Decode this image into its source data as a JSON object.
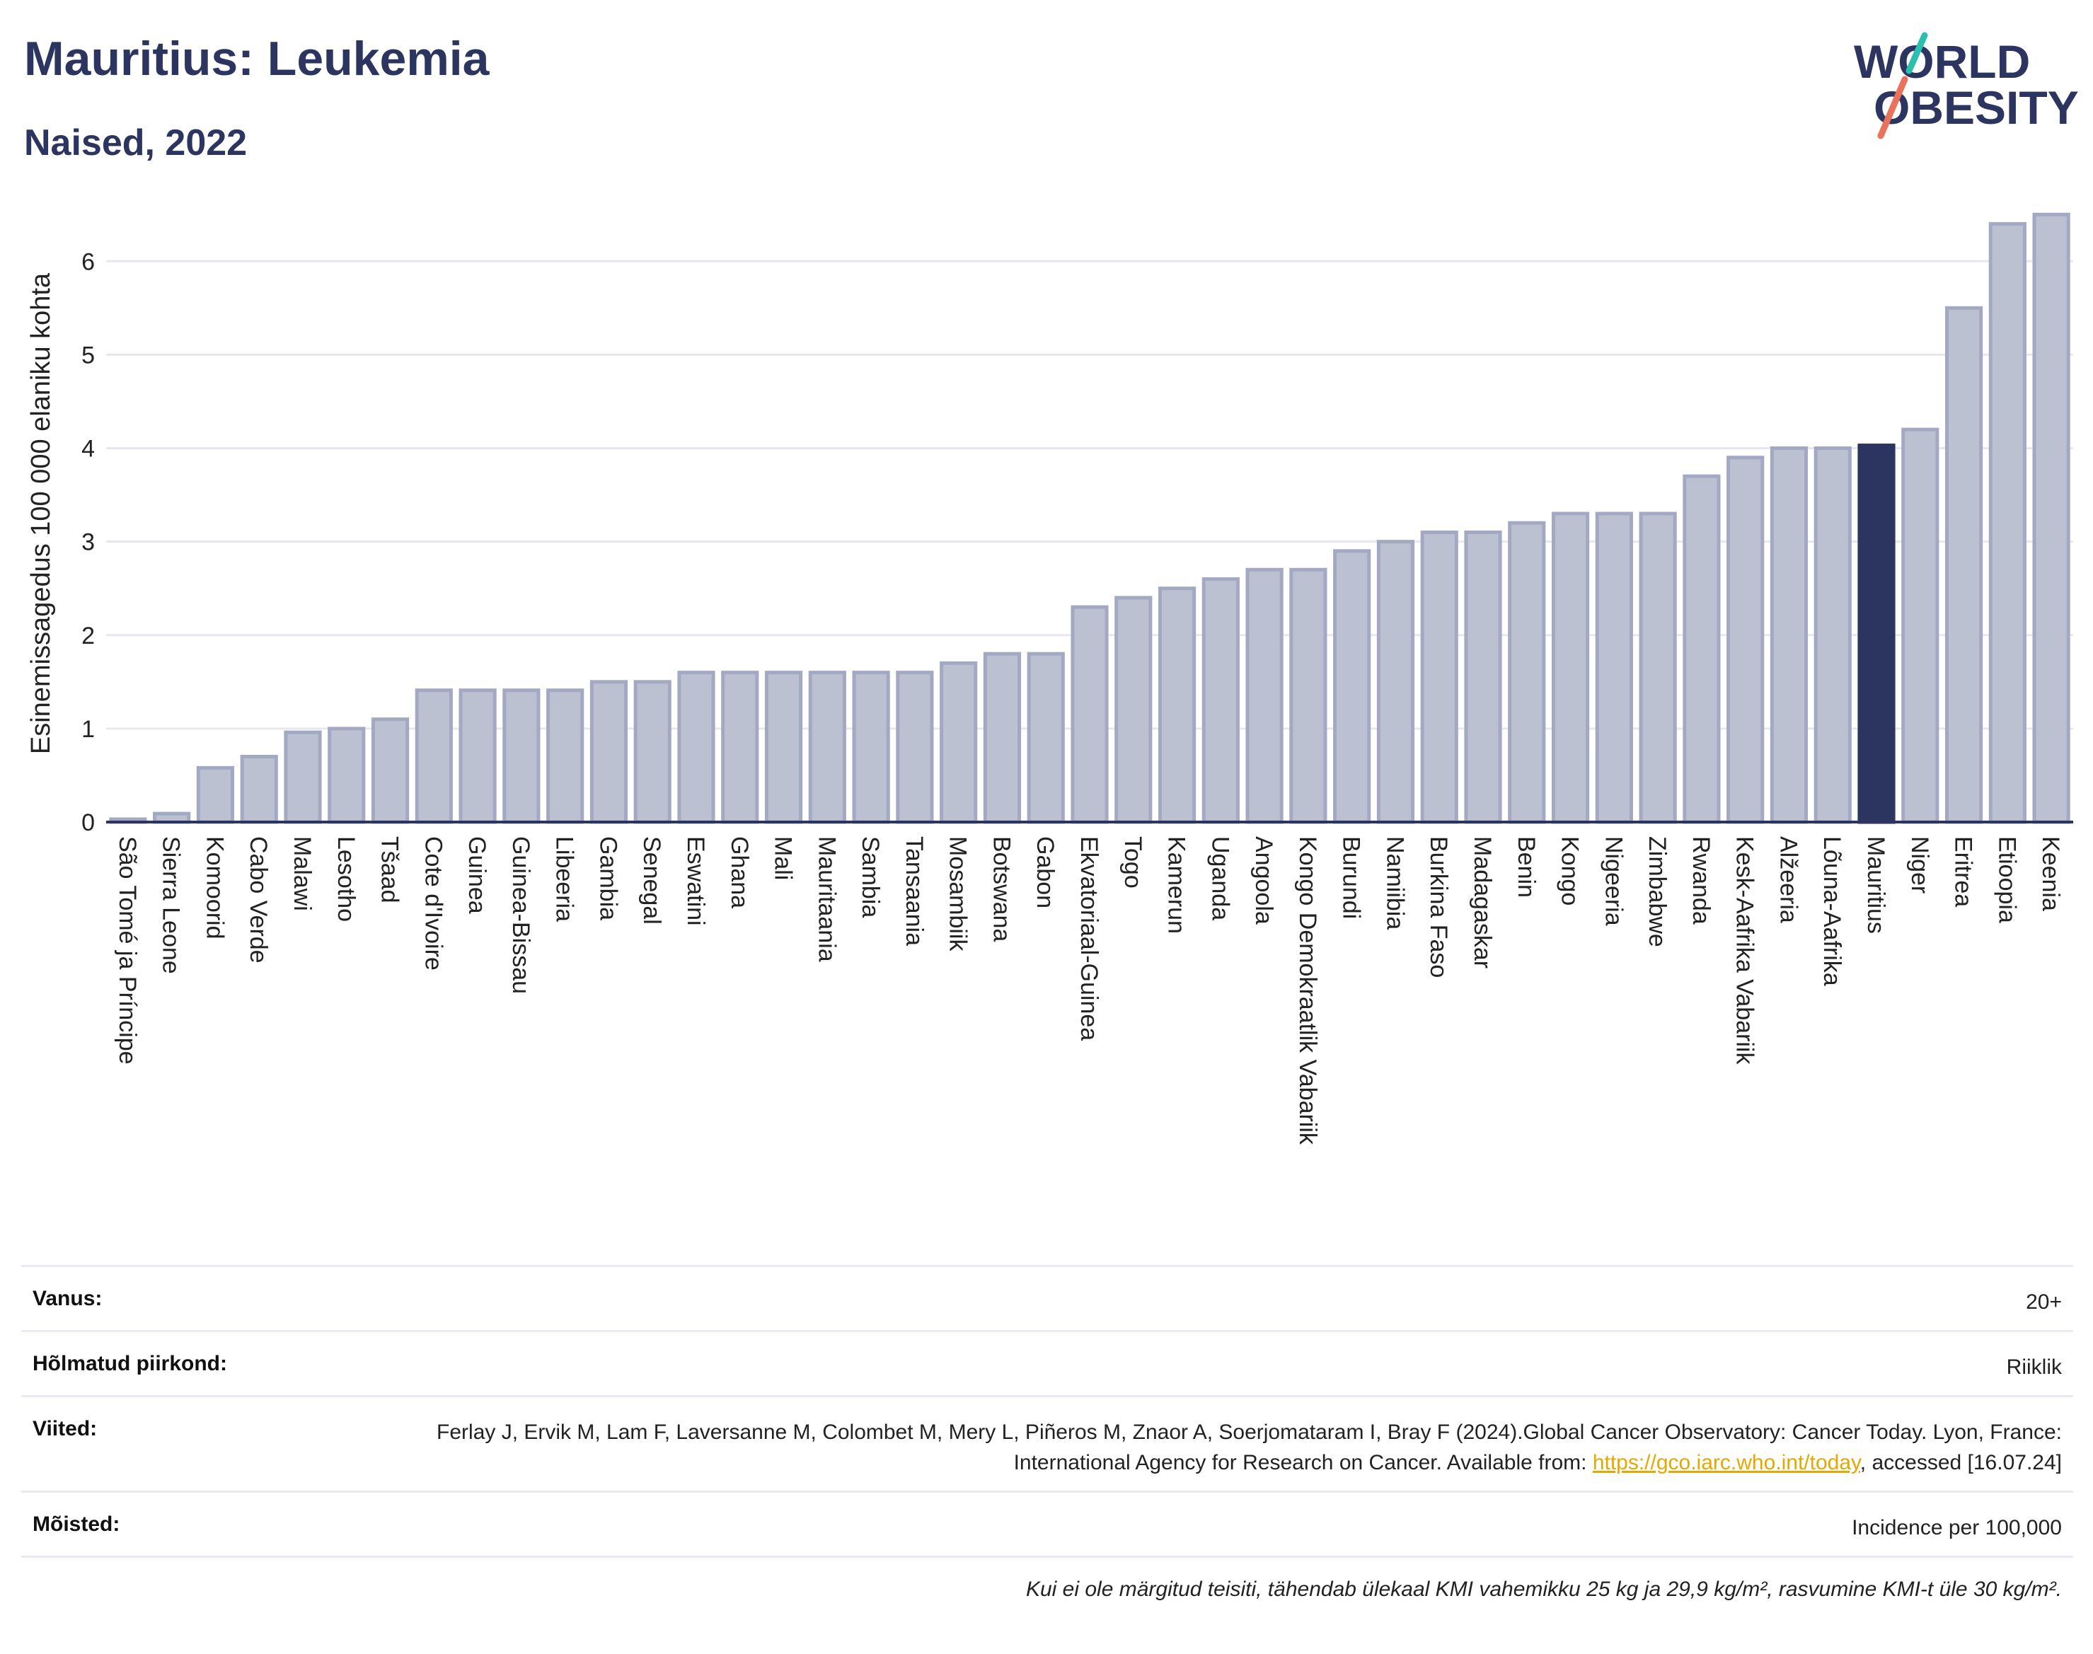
{
  "header": {
    "title": "Mauritius: Leukemia",
    "subtitle": "Naised, 2022"
  },
  "logo": {
    "line1": "WORLD",
    "line2": "OBESITY",
    "colors": {
      "text": "#2b3560",
      "slash_top": "#2bbfb0",
      "slash_bottom": "#e8735a"
    }
  },
  "chart_data": {
    "type": "bar",
    "ylabel": "Esinemissagedus 100 000 elaniku kohta",
    "ylim": [
      0,
      6.6
    ],
    "yticks": [
      0,
      1,
      2,
      3,
      4,
      5,
      6
    ],
    "grid": true,
    "highlight": "Mauritius",
    "colors": {
      "bar": "#bcc1d1",
      "bar_edge": "#a3a9c2",
      "highlight": "#2b3560",
      "grid": "#e6e8ef",
      "axis": "#2b3560"
    },
    "categories": [
      "São Tomé ja Príncipe",
      "Sierra Leone",
      "Komoorid",
      "Cabo Verde",
      "Malawi",
      "Lesotho",
      "Tšaad",
      "Cote d'Ivoire",
      "Guinea",
      "Guinea-Bissau",
      "Libeeria",
      "Gambia",
      "Senegal",
      "Eswatini",
      "Ghana",
      "Mali",
      "Mauritaania",
      "Sambia",
      "Tansaania",
      "Mosambiik",
      "Botswana",
      "Gabon",
      "Ekvatoriaal-Guinea",
      "Togo",
      "Kamerun",
      "Uganda",
      "Angoola",
      "Kongo Demokraatlik Vabariik",
      "Burundi",
      "Namiibia",
      "Burkina Faso",
      "Madagaskar",
      "Benin",
      "Kongo",
      "Nigeeria",
      "Zimbabwe",
      "Rwanda",
      "Kesk-Aafrika Vabariik",
      "Alžeeria",
      "Lõuna-Aafrika",
      "Mauritius",
      "Niger",
      "Eritrea",
      "Etioopia",
      "Keenia"
    ],
    "values": [
      0.03,
      0.09,
      0.58,
      0.7,
      0.96,
      1.0,
      1.1,
      1.41,
      1.41,
      1.41,
      1.41,
      1.5,
      1.5,
      1.6,
      1.6,
      1.6,
      1.6,
      1.6,
      1.6,
      1.7,
      1.8,
      1.8,
      2.3,
      2.4,
      2.5,
      2.6,
      2.7,
      2.7,
      2.9,
      3.0,
      3.1,
      3.1,
      3.2,
      3.3,
      3.3,
      3.3,
      3.7,
      3.9,
      4.0,
      4.0,
      4.03,
      4.2,
      5.5,
      6.4,
      6.5
    ]
  },
  "meta": {
    "rows": [
      {
        "label": "Vanus:",
        "value": "20+"
      },
      {
        "label": "Hõlmatud piirkond:",
        "value": "Riiklik"
      },
      {
        "label": "Viited:",
        "value_pre": "Ferlay J, Ervik M, Lam F, Laversanne M, Colombet M, Mery L, Piñeros M, Znaor A, Soerjomataram I, Bray F (2024).Global Cancer Observatory: Cancer Today. Lyon, France: International Agency for Research on Cancer. Available from: ",
        "link": "https://gco.iarc.who.int/today",
        "value_post": ", accessed [16.07.24]"
      },
      {
        "label": "Mõisted:",
        "value": "Incidence per 100,000"
      }
    ],
    "note": "Kui ei ole märgitud teisiti, tähendab ülekaal KMI vahemikku 25 kg ja 29,9 kg/m², rasvumine KMI-t üle 30 kg/m²."
  }
}
